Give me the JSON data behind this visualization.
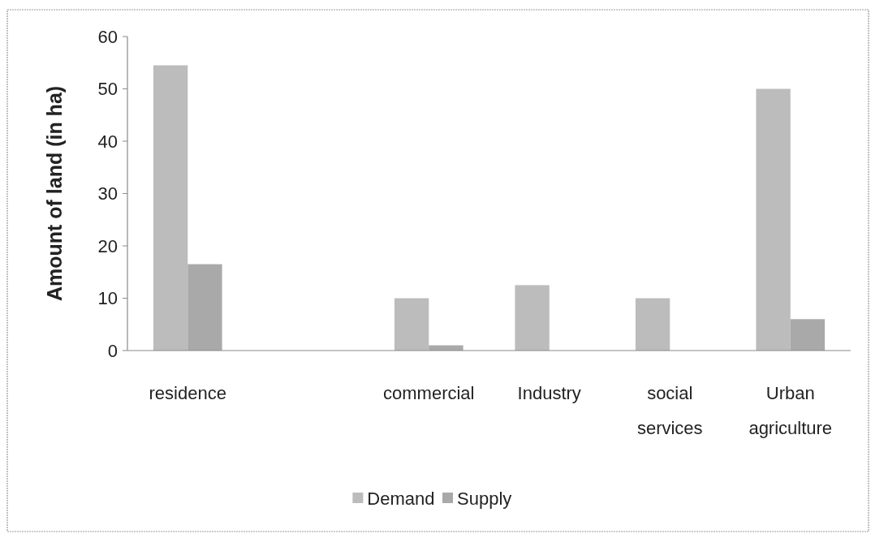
{
  "chart_data": {
    "type": "bar",
    "ylabel": "Amount of land (in ha)",
    "categories": [
      "residence",
      null,
      "commercial",
      "Industry",
      "social services",
      "Urban agriculture"
    ],
    "series": [
      {
        "name": "Demand",
        "color": "#bcbcbc",
        "values": [
          54.5,
          null,
          10,
          12.5,
          10,
          50
        ]
      },
      {
        "name": "Supply",
        "color": "#a9a9a9",
        "values": [
          16.5,
          null,
          1,
          0,
          0,
          6
        ]
      }
    ],
    "ylim": [
      0,
      60
    ],
    "yticks": [
      0,
      10,
      20,
      30,
      40,
      50,
      60
    ],
    "legend": "bottom"
  }
}
